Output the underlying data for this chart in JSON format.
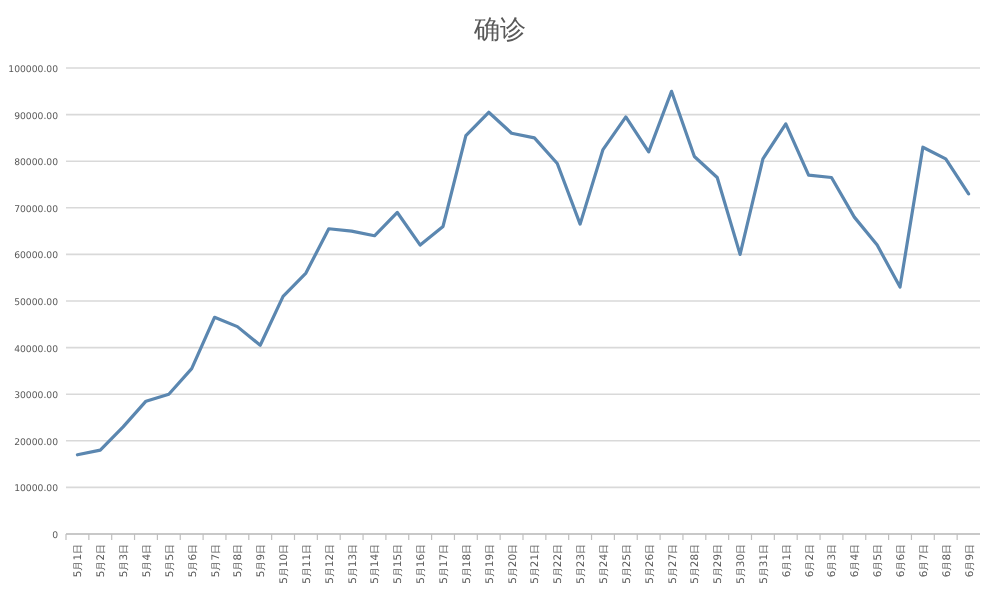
{
  "chart_data": {
    "type": "line",
    "title": "确诊",
    "categories": [
      "5月1日",
      "5月2日",
      "5月3日",
      "5月4日",
      "5月5日",
      "5月6日",
      "5月7日",
      "5月8日",
      "5月9日",
      "5月10日",
      "5月11日",
      "5月12日",
      "5月13日",
      "5月14日",
      "5月15日",
      "5月16日",
      "5月17日",
      "5月18日",
      "5月19日",
      "5月20日",
      "5月21日",
      "5月22日",
      "5月23日",
      "5月24日",
      "5月25日",
      "5月26日",
      "5月27日",
      "5月28日",
      "5月29日",
      "5月30日",
      "5月31日",
      "6月1日",
      "6月2日",
      "6月3日",
      "6月4日",
      "6月5日",
      "6月6日",
      "6月7日",
      "6月8日",
      "6月9日"
    ],
    "series": [
      {
        "color": "#5b87b0",
        "values": [
          17000,
          18000,
          23000,
          28500,
          30000,
          35500,
          46500,
          44500,
          40500,
          51000,
          56000,
          65500,
          65000,
          64000,
          69000,
          62000,
          66000,
          85500,
          90500,
          86000,
          85000,
          79500,
          66500,
          82500,
          89500,
          82000,
          95000,
          81000,
          76500,
          60000,
          80500,
          88000,
          77000,
          76500,
          68000,
          62000,
          53000,
          83000,
          80500,
          73000
        ]
      }
    ],
    "ylim": [
      0,
      100000
    ],
    "yticks": [
      0,
      {
        "value": 10000,
        "label": "10000.00"
      },
      {
        "value": 20000,
        "label": "20000.00"
      },
      {
        "value": 30000,
        "label": "30000.00"
      },
      {
        "value": 40000,
        "label": "40000.00"
      },
      {
        "value": 50000,
        "label": "50000.00"
      },
      {
        "value": 60000,
        "label": "60000.00"
      },
      {
        "value": 70000,
        "label": "70000.00"
      },
      {
        "value": 80000,
        "label": "80000.00"
      },
      {
        "value": 90000,
        "label": "90000.00"
      },
      {
        "value": 100000,
        "label": "100000.00"
      }
    ],
    "grid": "y",
    "marker": "none",
    "line_style": "solid"
  }
}
